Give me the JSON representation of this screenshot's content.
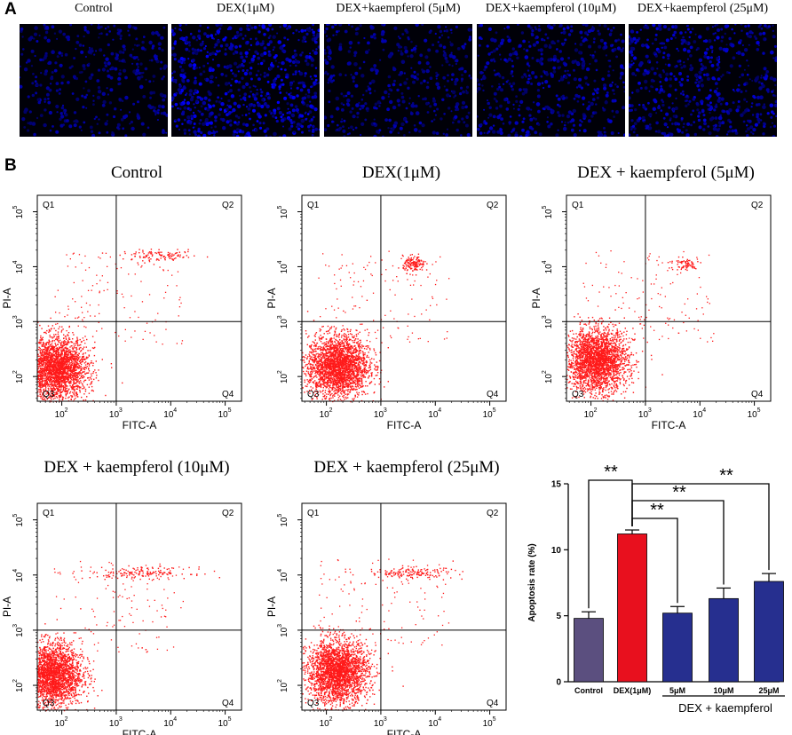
{
  "panel_a": {
    "letter": "A",
    "images": [
      {
        "label": "Control",
        "density": 0.55
      },
      {
        "label": "DEX(1μM)",
        "density": 1.0
      },
      {
        "label": "DEX+kaempferol (5μM)",
        "density": 0.6
      },
      {
        "label": "DEX+kaempferol (10μM)",
        "density": 0.7
      },
      {
        "label": "DEX+kaempferol (25μM)",
        "density": 0.8
      }
    ]
  },
  "panel_b": {
    "letter": "B",
    "flow_axis": {
      "xlabel": "FITC-A",
      "ylabel": "PI-A",
      "tick_labels": [
        "10",
        "10",
        "10",
        "10"
      ],
      "tick_exponents": [
        "2",
        "3",
        "4",
        "5"
      ],
      "quadrants": [
        "Q1",
        "Q2",
        "Q3",
        "Q4"
      ]
    },
    "flow_plots": [
      {
        "title": "Control",
        "q2_center": [
          3.8,
          4.2
        ],
        "q2_spread": [
          0.35,
          0.05
        ],
        "q2_count": 110,
        "cluster_center": [
          1.9,
          2.15
        ]
      },
      {
        "title": "DEX(1μM)",
        "q2_center": [
          3.6,
          4.05
        ],
        "q2_spread": [
          0.1,
          0.07
        ],
        "q2_count": 140,
        "cluster_center": [
          2.2,
          2.2
        ]
      },
      {
        "title": "DEX + kaempferol (5μM)",
        "q2_center": [
          3.7,
          4.05
        ],
        "q2_spread": [
          0.15,
          0.06
        ],
        "q2_count": 70,
        "cluster_center": [
          2.1,
          2.3
        ]
      },
      {
        "title": "DEX + kaempferol (10μM)",
        "q2_center": [
          3.45,
          4.05
        ],
        "q2_spread": [
          0.45,
          0.05
        ],
        "q2_count": 150,
        "cluster_center": [
          1.8,
          2.2
        ]
      },
      {
        "title": "DEX + kaempferol (25μM)",
        "q2_center": [
          3.55,
          4.05
        ],
        "q2_spread": [
          0.4,
          0.05
        ],
        "q2_count": 150,
        "cluster_center": [
          2.2,
          2.25
        ]
      }
    ]
  },
  "chart_data": {
    "type": "bar",
    "title": "",
    "xlabel": "",
    "ylabel": "Apoptosis rate (%)",
    "ylim": [
      0,
      15
    ],
    "yticks": [
      0,
      5,
      10,
      15
    ],
    "categories": [
      "Control",
      "DEX(1μM)",
      "5μM",
      "10μM",
      "25μM"
    ],
    "values": [
      4.8,
      11.2,
      5.2,
      6.3,
      7.6
    ],
    "errors": [
      0.5,
      0.3,
      0.5,
      0.8,
      0.6
    ],
    "colors": [
      "#5b4f7f",
      "#e8101e",
      "#262f8f",
      "#262f8f",
      "#262f8f"
    ],
    "group_label": "DEX + kaempferol",
    "significance": [
      {
        "from": 1,
        "to": 0,
        "label": "**"
      },
      {
        "from": 1,
        "to": 2,
        "label": "**"
      },
      {
        "from": 1,
        "to": 3,
        "label": "**"
      },
      {
        "from": 1,
        "to": 4,
        "label": "**"
      }
    ]
  }
}
